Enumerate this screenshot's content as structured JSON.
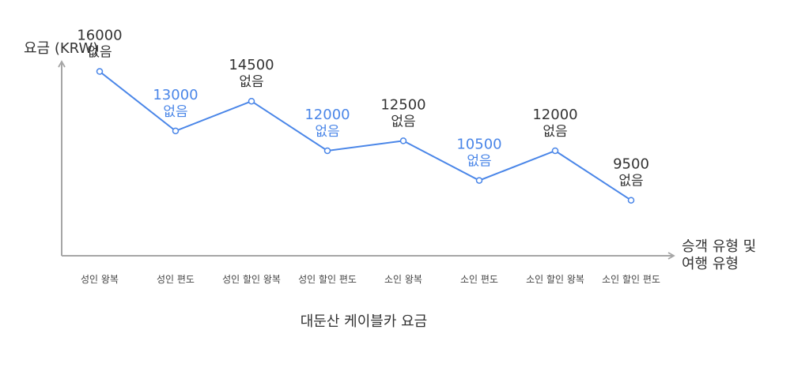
{
  "chart_data": {
    "type": "line",
    "title": "대둔산 케이블카 요금",
    "ylabel": "요금 (KRW)",
    "xlabel": [
      "승객 유형 및",
      "여행 유형"
    ],
    "categories": [
      "성인 왕복",
      "성인 편도",
      "성인 할인 왕복",
      "성인 할인 편도",
      "소인 왕복",
      "소인 편도",
      "소인 할인 왕복",
      "소인 할인 편도"
    ],
    "series": [
      {
        "values": [
          16000,
          13000,
          14500,
          12000,
          12500,
          10500,
          12000,
          9500
        ],
        "notes": [
          "없음",
          "없음",
          "없음",
          "없음",
          "없음",
          "없음",
          "없음",
          "없음"
        ]
      }
    ],
    "ylim": [
      6700,
      16500
    ],
    "grid": false,
    "colors": {
      "line": "#4a86e8",
      "label_dark": "#333333",
      "label_highlight": "#4a86e8",
      "axis": "#a6a6a6"
    },
    "label_highlight": [
      false,
      true,
      false,
      true,
      false,
      true,
      false,
      false
    ]
  }
}
